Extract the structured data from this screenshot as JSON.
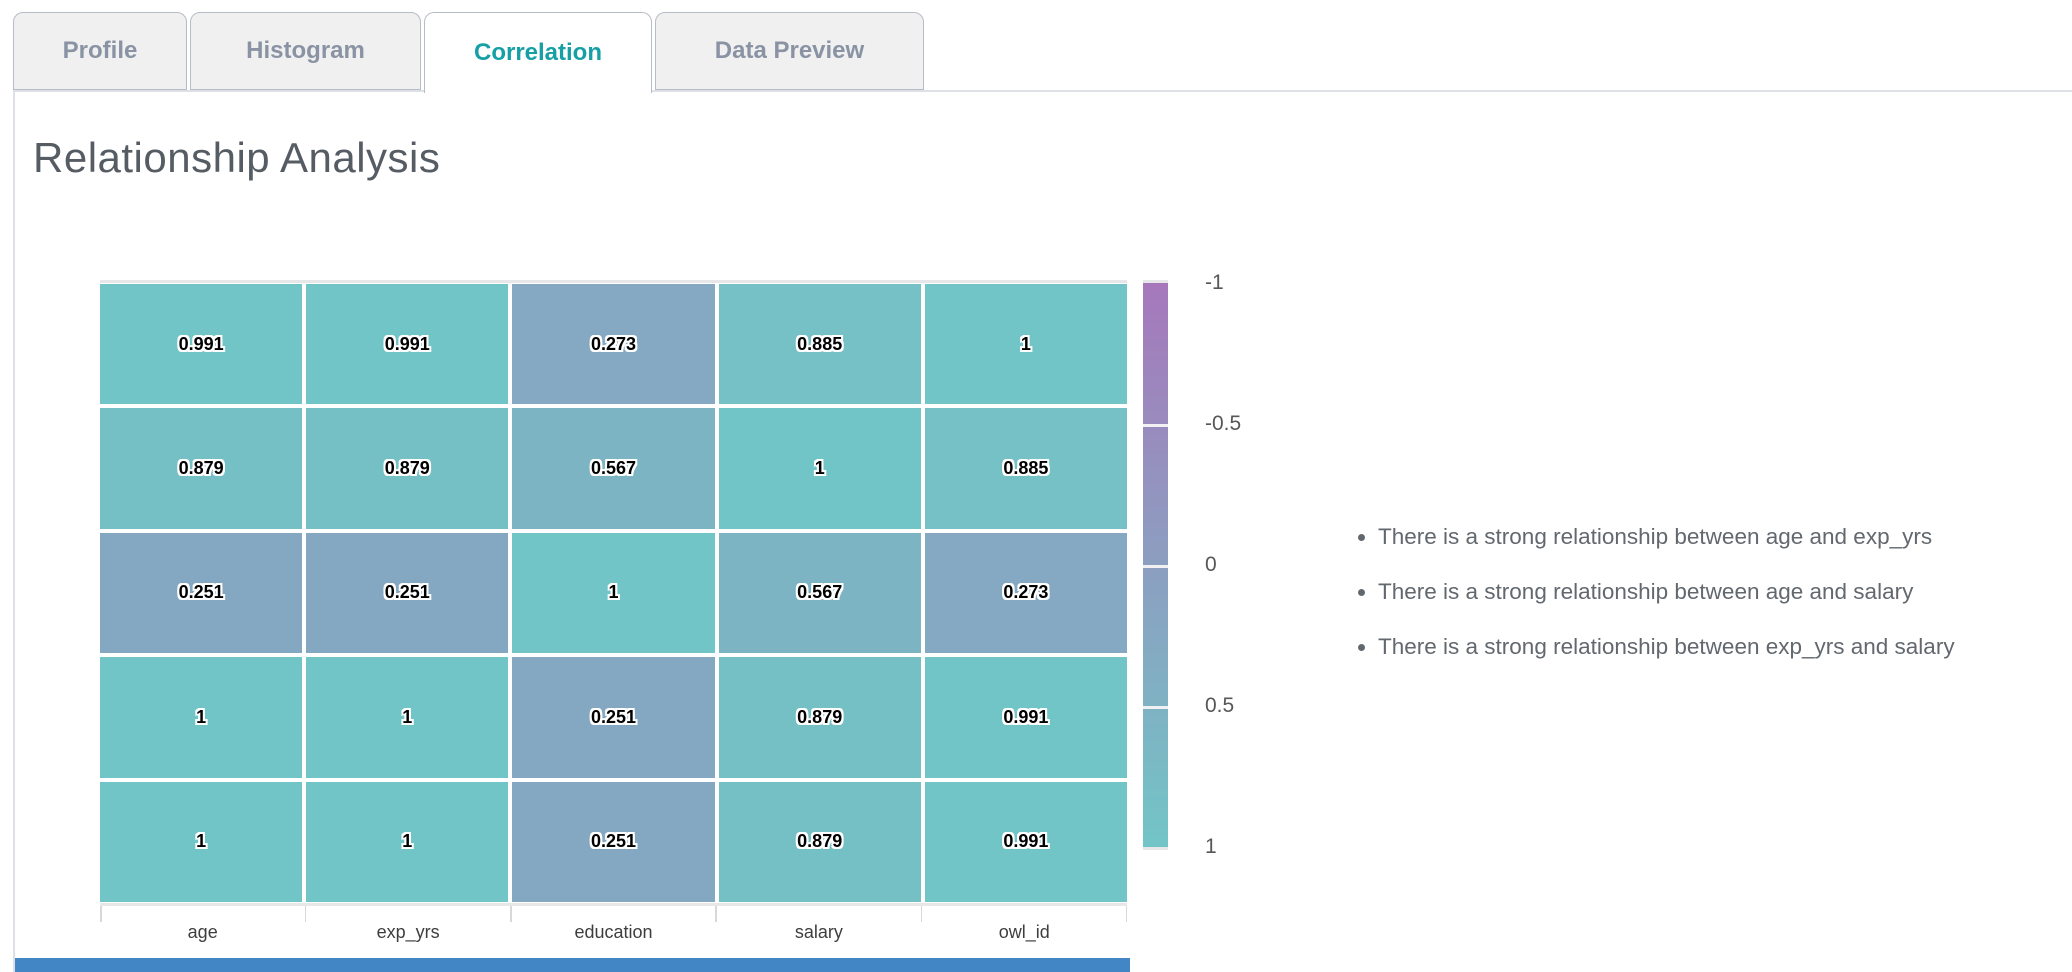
{
  "tabs": [
    {
      "label": "Profile",
      "active": false
    },
    {
      "label": "Histogram",
      "active": false
    },
    {
      "label": "Correlation",
      "active": true
    },
    {
      "label": "Data Preview",
      "active": false
    }
  ],
  "heading": "Relationship Analysis",
  "chart_data": {
    "type": "heatmap",
    "title": "",
    "x_categories": [
      "age",
      "exp_yrs",
      "education",
      "salary",
      "owl_id"
    ],
    "matrix_rows_top_to_bottom": [
      [
        0.991,
        0.991,
        0.273,
        0.885,
        1
      ],
      [
        0.879,
        0.879,
        0.567,
        1,
        0.885
      ],
      [
        0.251,
        0.251,
        1,
        0.567,
        0.273
      ],
      [
        1,
        1,
        0.251,
        0.879,
        0.991
      ],
      [
        1,
        1,
        0.251,
        0.879,
        0.991
      ]
    ],
    "value_range": [
      -1,
      1
    ],
    "colorbar": {
      "tick_labels": [
        "-1",
        "-0.5",
        "0",
        "0.5",
        "1"
      ],
      "position": "right",
      "color_at_minus_1": "#a678bb",
      "color_at_plus_1": "#72c5c6"
    },
    "grid": false
  },
  "insights": [
    "There is a strong relationship between age and exp_yrs",
    "There is a strong relationship between age and salary",
    "There is a strong relationship between exp_yrs and salary"
  ],
  "colors": {
    "active_tab_text": "#16a0a6",
    "inactive_tab_text": "#8a93a4",
    "tab_border": "#b7bdc6",
    "panel_border": "#dde0e4",
    "heatmap_teal": "#72c5c6",
    "heatmap_purple": "#a678bb",
    "bottom_bar_blue": "#4286c6"
  }
}
